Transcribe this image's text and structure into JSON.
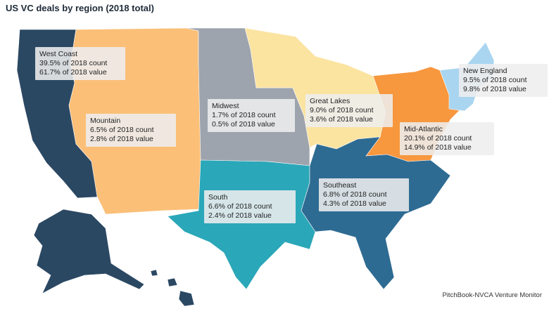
{
  "title": "US VC deals by region (2018 total)",
  "source": "PitchBook-NVCA Venture Monitor",
  "colors": {
    "west_coast": "#2b4863",
    "mountain": "#fbbf78",
    "midwest": "#9ea4ad",
    "great_lakes": "#fbe3a0",
    "new_england": "#a9d5f0",
    "mid_atlantic": "#f7973e",
    "south": "#2aa7b8",
    "southeast": "#2e6b93"
  },
  "regions": [
    {
      "key": "west_coast",
      "name": "West Coast",
      "count": "39.5% of 2018 count",
      "value": "61.7% of 2018 value"
    },
    {
      "key": "mountain",
      "name": "Mountain",
      "count": "6.5% of 2018 count",
      "value": "2.8% of 2018 value"
    },
    {
      "key": "midwest",
      "name": "Midwest",
      "count": "1.7% of 2018 count",
      "value": "0.5% of 2018 value"
    },
    {
      "key": "great_lakes",
      "name": "Great Lakes",
      "count": "9.0% of 2018 count",
      "value": "3.6% of 2018 value"
    },
    {
      "key": "new_england",
      "name": "New England",
      "count": "9.5% of 2018 count",
      "value": "9.8% of 2018 value"
    },
    {
      "key": "mid_atlantic",
      "name": "Mid-Atlantic",
      "count": "20.1% of 2018 count",
      "value": "14.9% of 2018 value"
    },
    {
      "key": "south",
      "name": "South",
      "count": "6.6% of 2018 count",
      "value": "2.4% of 2018 value"
    },
    {
      "key": "southeast",
      "name": "Southeast",
      "count": "6.8% of 2018 count",
      "value": "4.3% of 2018 value"
    }
  ]
}
